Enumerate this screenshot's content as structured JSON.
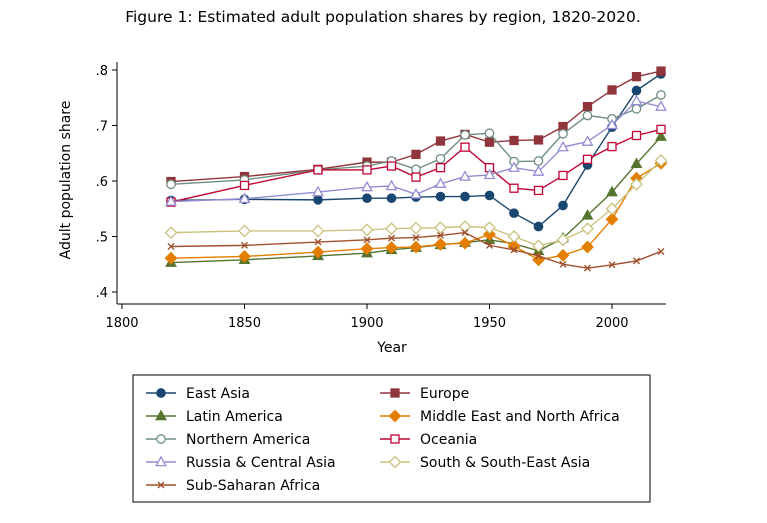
{
  "chart_data": {
    "type": "line",
    "title": "Figure 1: Estimated adult population shares by region, 1820-2020.",
    "xlabel": "Year",
    "ylabel": "Adult population share",
    "xlim": [
      1800,
      2020
    ],
    "ylim": [
      0.4,
      0.8
    ],
    "x_ticks": [
      1800,
      1850,
      1900,
      1950,
      2000
    ],
    "x_tick_labels": [
      "1800",
      "1850",
      "1900",
      "1950",
      "2000"
    ],
    "y_ticks": [
      0.4,
      0.5,
      0.6,
      0.7,
      0.8
    ],
    "y_tick_labels": [
      ".4",
      ".5",
      ".6",
      ".7",
      ".8"
    ],
    "grid": false,
    "legend_position": "bottom",
    "x": [
      1820,
      1850,
      1880,
      1900,
      1910,
      1920,
      1930,
      1940,
      1950,
      1960,
      1970,
      1980,
      1990,
      2000,
      2010,
      2020
    ],
    "series": [
      {
        "name": "East Asia",
        "color": "#1a476f",
        "marker": "circle-filled",
        "values": [
          0.565,
          0.567,
          0.566,
          0.569,
          0.569,
          0.571,
          0.572,
          0.572,
          0.574,
          0.542,
          0.518,
          0.556,
          0.629,
          0.697,
          0.763,
          0.793
        ]
      },
      {
        "name": "Europe",
        "color": "#90353b",
        "marker": "square-filled",
        "values": [
          0.599,
          0.608,
          0.621,
          0.634,
          0.634,
          0.648,
          0.672,
          0.684,
          0.67,
          0.673,
          0.674,
          0.698,
          0.734,
          0.764,
          0.788,
          0.798
        ]
      },
      {
        "name": "Latin America",
        "color": "#55752f",
        "marker": "triangle-filled",
        "values": [
          0.453,
          0.458,
          0.465,
          0.47,
          0.476,
          0.48,
          0.485,
          0.489,
          0.494,
          0.487,
          0.474,
          0.497,
          0.538,
          0.58,
          0.631,
          0.68
        ]
      },
      {
        "name": "Middle East and North Africa",
        "color": "#e37e00",
        "marker": "diamond-filled",
        "values": [
          0.461,
          0.464,
          0.472,
          0.478,
          0.48,
          0.481,
          0.486,
          0.488,
          0.504,
          0.483,
          0.458,
          0.466,
          0.481,
          0.531,
          0.605,
          0.632
        ]
      },
      {
        "name": "Northern America",
        "color": "#6e8e84",
        "marker": "circle-hollow",
        "values": [
          0.594,
          0.602,
          0.62,
          0.627,
          0.636,
          0.621,
          0.64,
          0.683,
          0.686,
          0.635,
          0.636,
          0.685,
          0.718,
          0.712,
          0.73,
          0.755
        ]
      },
      {
        "name": "Oceania",
        "color": "#c10534",
        "marker": "square-hollow",
        "values": [
          0.562,
          0.592,
          0.62,
          0.62,
          0.627,
          0.607,
          0.624,
          0.661,
          0.624,
          0.587,
          0.583,
          0.61,
          0.639,
          0.662,
          0.682,
          0.693
        ]
      },
      {
        "name": "Russia & Central Asia",
        "color": "#938dd2",
        "marker": "triangle-hollow",
        "values": [
          0.563,
          0.568,
          0.58,
          0.589,
          0.591,
          0.576,
          0.595,
          0.608,
          0.611,
          0.624,
          0.617,
          0.661,
          0.671,
          0.701,
          0.744,
          0.734
        ]
      },
      {
        "name": "South & South-East Asia",
        "color": "#cac27e",
        "marker": "diamond-hollow",
        "values": [
          0.507,
          0.51,
          0.51,
          0.512,
          0.514,
          0.515,
          0.516,
          0.518,
          0.516,
          0.5,
          0.483,
          0.494,
          0.514,
          0.55,
          0.594,
          0.637
        ]
      },
      {
        "name": "Sub-Saharan Africa",
        "color": "#a0522d",
        "marker": "x",
        "values": [
          0.482,
          0.484,
          0.49,
          0.494,
          0.497,
          0.498,
          0.502,
          0.507,
          0.484,
          0.476,
          0.465,
          0.45,
          0.443,
          0.449,
          0.456,
          0.473
        ]
      }
    ]
  }
}
